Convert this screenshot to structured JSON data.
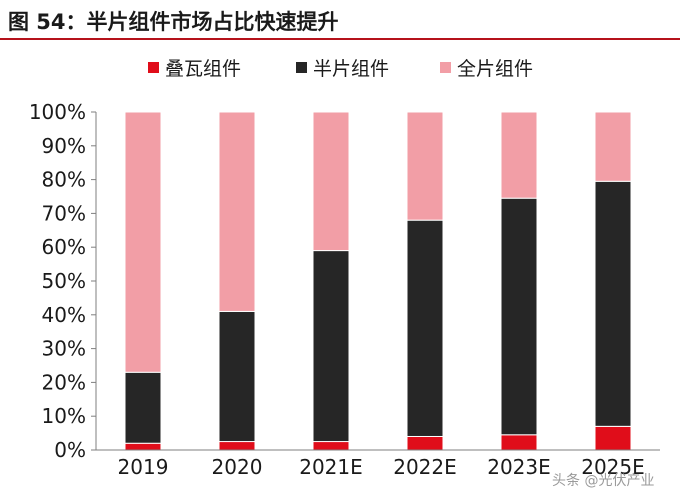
{
  "figure": {
    "title": "图 54：半片组件市场占比快速提升",
    "watermark": "头条 @光伏产业"
  },
  "colors": {
    "title_rule": "#b5121b",
    "axis": "#7f7f7f",
    "text": "#1a1a1a"
  },
  "chart_data": {
    "type": "bar",
    "stacked": true,
    "title": "",
    "xlabel": "",
    "ylabel": "",
    "categories": [
      "2019",
      "2020",
      "2021E",
      "2022E",
      "2023E",
      "2025E"
    ],
    "ylim": [
      0,
      100
    ],
    "y_ticks": [
      "0%",
      "10%",
      "20%",
      "30%",
      "40%",
      "50%",
      "60%",
      "70%",
      "80%",
      "90%",
      "100%"
    ],
    "grid": false,
    "legend_position": "top",
    "series": [
      {
        "name": "叠瓦组件",
        "color": "#e00d1a",
        "values": [
          2,
          2.5,
          2.5,
          4,
          4.5,
          7
        ]
      },
      {
        "name": "半片组件",
        "color": "#262626",
        "values": [
          21,
          38.5,
          56.5,
          64,
          70,
          72.5
        ]
      },
      {
        "name": "全片组件",
        "color": "#f29ea6",
        "values": [
          77,
          59,
          41,
          32,
          25.5,
          20.5
        ]
      }
    ]
  }
}
